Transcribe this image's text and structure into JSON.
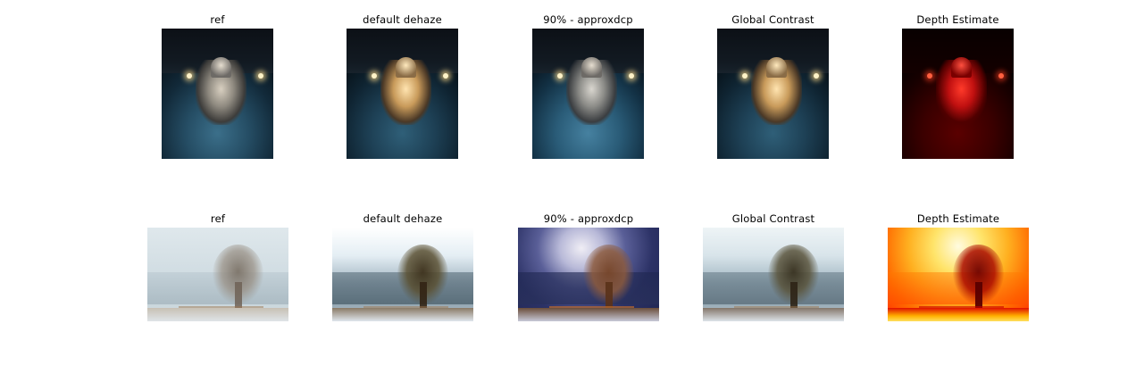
{
  "rows": [
    {
      "panels": [
        {
          "title": "ref",
          "icon": "night-cathedral-image"
        },
        {
          "title": "default dehaze",
          "icon": "night-cathedral-image"
        },
        {
          "title": "90% - approxdcp",
          "icon": "night-cathedral-image"
        },
        {
          "title": "Global Contrast",
          "icon": "night-cathedral-image"
        },
        {
          "title": "Depth Estimate",
          "icon": "depth-map-image"
        }
      ]
    },
    {
      "panels": [
        {
          "title": "ref",
          "icon": "foggy-tree-image"
        },
        {
          "title": "default dehaze",
          "icon": "foggy-tree-image"
        },
        {
          "title": "90% - approxdcp",
          "icon": "foggy-tree-image"
        },
        {
          "title": "Global Contrast",
          "icon": "foggy-tree-image"
        },
        {
          "title": "Depth Estimate",
          "icon": "depth-map-image"
        }
      ]
    }
  ]
}
